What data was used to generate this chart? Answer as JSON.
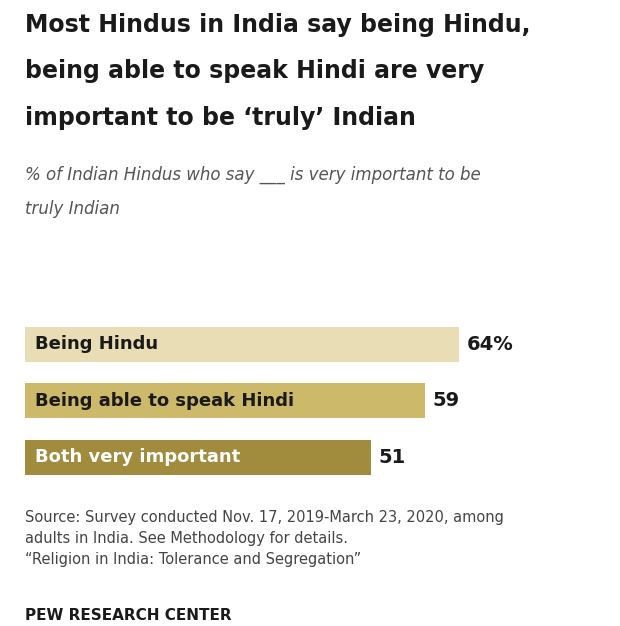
{
  "title_line1": "Most Hindus in India say being Hindu,",
  "title_line2": "being able to speak Hindi are very",
  "title_line3": "important to be ‘truly’ Indian",
  "subtitle_line1": "% of Indian Hindus who say ___ is very important to be",
  "subtitle_line2": "truly Indian",
  "categories": [
    "Being Hindu",
    "Being able to speak Hindi",
    "Both very important"
  ],
  "values": [
    64,
    59,
    51
  ],
  "bar_colors": [
    "#e8ddb5",
    "#ccb96a",
    "#a08c3c"
  ],
  "label_colors": [
    "#1a1a1a",
    "#1a1a1a",
    "#ffffff"
  ],
  "value_labels": [
    "64%",
    "59",
    "51"
  ],
  "source_text": "Source: Survey conducted Nov. 17, 2019-March 23, 2020, among\nadults in India. See Methodology for details.\n“Religion in India: Tolerance and Segregation”",
  "footer": "PEW RESEARCH CENTER",
  "background_color": "#ffffff",
  "xlim": [
    0,
    75
  ],
  "bar_height": 0.62,
  "title_fontsize": 17,
  "subtitle_fontsize": 12,
  "label_fontsize": 13,
  "value_fontsize": 14,
  "source_fontsize": 10.5,
  "footer_fontsize": 11
}
